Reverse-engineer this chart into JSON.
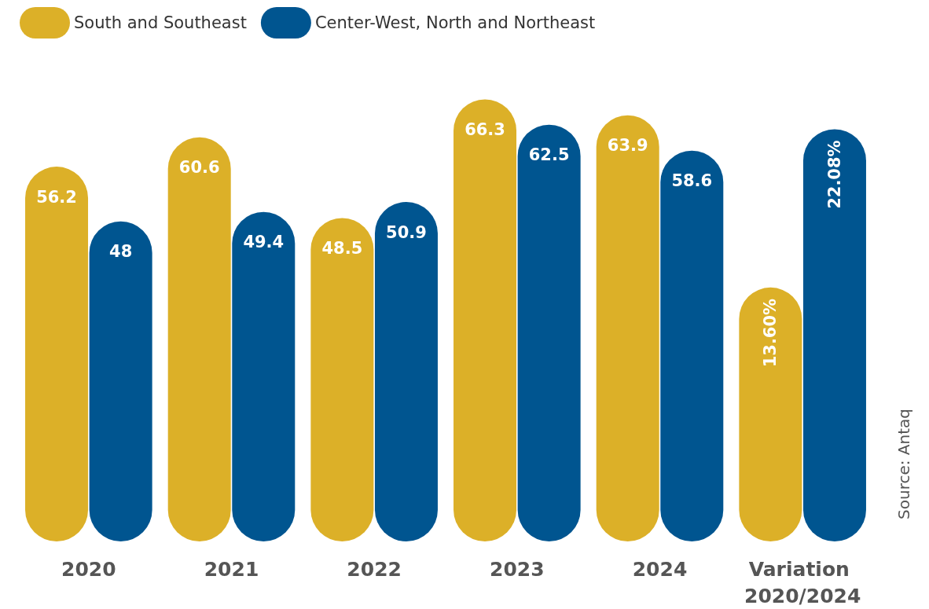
{
  "chart_data": {
    "type": "bar",
    "categories": [
      "2020",
      "2021",
      "2022",
      "2023",
      "2024",
      "Variation 2020/2024"
    ],
    "series": [
      {
        "name": "South and Southeast",
        "color": "#dcb028",
        "values": [
          56.2,
          60.6,
          48.5,
          66.3,
          63.9,
          null
        ],
        "value_labels": [
          "56.2",
          "60.6",
          "48.5",
          "66.3",
          "63.9",
          null
        ]
      },
      {
        "name": "Center-West, North and Northeast",
        "color": "#005590",
        "values": [
          48,
          49.4,
          50.9,
          62.5,
          58.6,
          null
        ],
        "value_labels": [
          "48",
          "49.4",
          "50.9",
          "62.5",
          "58.6",
          null
        ]
      },
      {
        "color": "#dcb028",
        "axis": "y2",
        "values": [
          null,
          null,
          null,
          null,
          null,
          13.6
        ],
        "value_labels": [
          null,
          null,
          null,
          null,
          null,
          "13.60%"
        ]
      },
      {
        "color": "#005590",
        "axis": "y2",
        "values": [
          null,
          null,
          null,
          null,
          null,
          22.08
        ],
        "value_labels": [
          null,
          null,
          null,
          null,
          null,
          "22.08%"
        ]
      }
    ],
    "tick_labels": "x",
    "grid": false,
    "legend": "top left",
    "annotations": [
      "Source: Antaq"
    ]
  }
}
